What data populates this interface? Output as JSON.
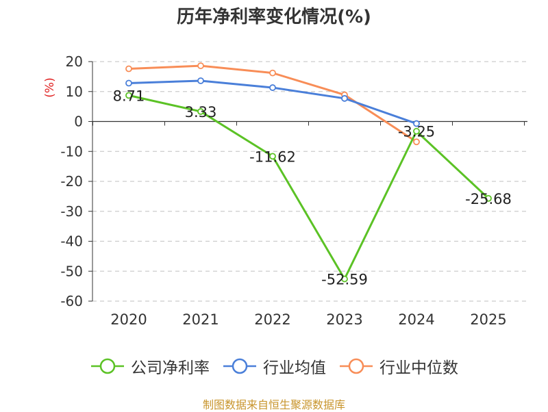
{
  "chart_data": {
    "type": "line",
    "title": "历年净利率变化情况(%)",
    "ylabel": "(%)",
    "xlabel": "",
    "categories": [
      "2020",
      "2021",
      "2022",
      "2023",
      "2024",
      "2025"
    ],
    "ylim": [
      -60,
      20
    ],
    "yticks": [
      20,
      10,
      0,
      -10,
      -20,
      -30,
      -40,
      -50,
      -60
    ],
    "grid": true,
    "legend_position": "bottom",
    "series": [
      {
        "name": "公司净利率",
        "color": "#5bc225",
        "values": [
          8.71,
          3.33,
          -11.62,
          -52.59,
          -3.25,
          -25.68
        ],
        "labels": [
          "8.71",
          "3.33",
          "-11.62",
          "-52.59",
          "-3.25",
          "-25.68"
        ]
      },
      {
        "name": "行业均值",
        "color": "#4a7fd9",
        "values": [
          12.8,
          13.6,
          11.3,
          7.7,
          -0.7,
          null
        ]
      },
      {
        "name": "行业中位数",
        "color": "#f88d57",
        "values": [
          17.6,
          18.6,
          16.2,
          8.9,
          -6.8,
          null
        ]
      }
    ]
  },
  "source": "制图数据来自恒生聚源数据库"
}
